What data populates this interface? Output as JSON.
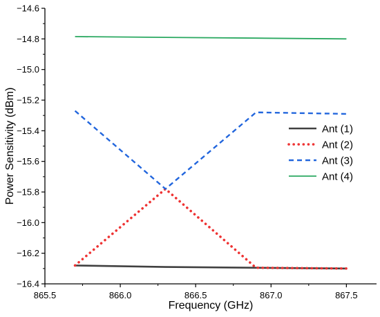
{
  "chart_data": {
    "type": "line",
    "xlabel": "Frequency (GHz)",
    "ylabel": "Power Sensitivity (dBm)",
    "xlim": [
      865.5,
      867.7
    ],
    "ylim": [
      -16.4,
      -14.6
    ],
    "xticks": [
      "865.5",
      "866.0",
      "866.5",
      "867.0",
      "867.5"
    ],
    "yticks": [
      "-14.6",
      "-14.8",
      "-15.0",
      "-15.2",
      "-15.4",
      "-15.6",
      "-15.8",
      "-16.0",
      "-16.2",
      "-16.4"
    ],
    "grid": false,
    "legend_position": "right",
    "series": [
      {
        "name": "Ant (1)",
        "color": "#404040",
        "style": "solid",
        "x": [
          865.7,
          866.3,
          866.9,
          867.5
        ],
        "y": [
          -16.28,
          -16.29,
          -16.295,
          -16.3
        ]
      },
      {
        "name": "Ant (2)",
        "color": "#ee3333",
        "style": "dotted",
        "x": [
          865.7,
          866.3,
          866.9,
          867.5
        ],
        "y": [
          -16.28,
          -15.78,
          -16.295,
          -16.3
        ]
      },
      {
        "name": "Ant (3)",
        "color": "#2266dd",
        "style": "dashed",
        "x": [
          865.7,
          866.3,
          866.9,
          867.5
        ],
        "y": [
          -15.27,
          -15.78,
          -15.28,
          -15.29
        ]
      },
      {
        "name": "Ant (4)",
        "color": "#2aa860",
        "style": "solid",
        "x": [
          865.7,
          866.3,
          866.9,
          867.5
        ],
        "y": [
          -14.785,
          -14.79,
          -14.795,
          -14.8
        ]
      }
    ]
  }
}
